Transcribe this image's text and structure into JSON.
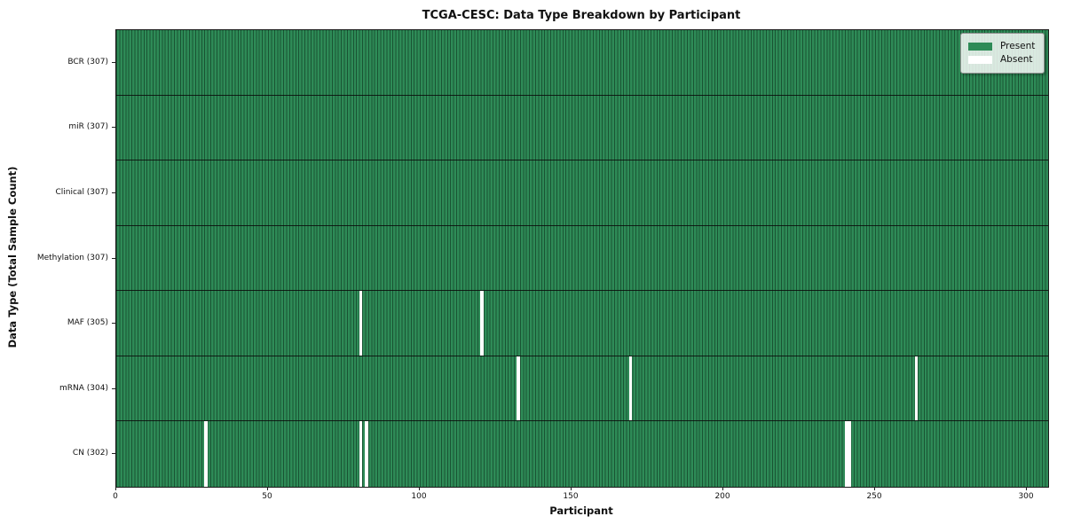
{
  "title": "TCGA-CESC: Data Type Breakdown by Participant",
  "colors": {
    "present": "#2e8b57",
    "absent": "#ffffff",
    "cell_gridline": "#1c5b38",
    "row_separator": "#141414",
    "plot_border": "#1a1a1a",
    "background": "#ffffff"
  },
  "legend": {
    "position": "upper right",
    "entries": [
      {
        "label": "Present",
        "color": "#2e8b57"
      },
      {
        "label": "Absent",
        "color": "#ffffff"
      }
    ]
  },
  "chart_data": {
    "type": "heatmap",
    "title": "TCGA-CESC: Data Type Breakdown by Participant",
    "xlabel": "Participant",
    "ylabel": "Data Type (Total Sample Count)",
    "x_range": [
      0,
      307
    ],
    "x_ticks": [
      0,
      50,
      100,
      150,
      200,
      250,
      300
    ],
    "n_participants": 307,
    "grid": "per-cell vertical gridlines and per-row horizontal separators",
    "legend_entries": [
      "Present",
      "Absent"
    ],
    "rows": [
      {
        "data_type": "BCR",
        "label": "BCR (307)",
        "present_count": 307,
        "absent_participants": []
      },
      {
        "data_type": "miR",
        "label": "miR (307)",
        "present_count": 307,
        "absent_participants": []
      },
      {
        "data_type": "Clinical",
        "label": "Clinical (307)",
        "present_count": 307,
        "absent_participants": []
      },
      {
        "data_type": "Methylation",
        "label": "Methylation (307)",
        "present_count": 307,
        "absent_participants": []
      },
      {
        "data_type": "MAF",
        "label": "MAF (305)",
        "present_count": 305,
        "absent_participants": [
          80,
          120
        ]
      },
      {
        "data_type": "mRNA",
        "label": "mRNA (304)",
        "present_count": 304,
        "absent_participants": [
          132,
          169,
          263
        ]
      },
      {
        "data_type": "CN",
        "label": "CN (302)",
        "present_count": 302,
        "absent_participants": [
          29,
          80,
          82,
          240,
          241
        ]
      }
    ]
  }
}
